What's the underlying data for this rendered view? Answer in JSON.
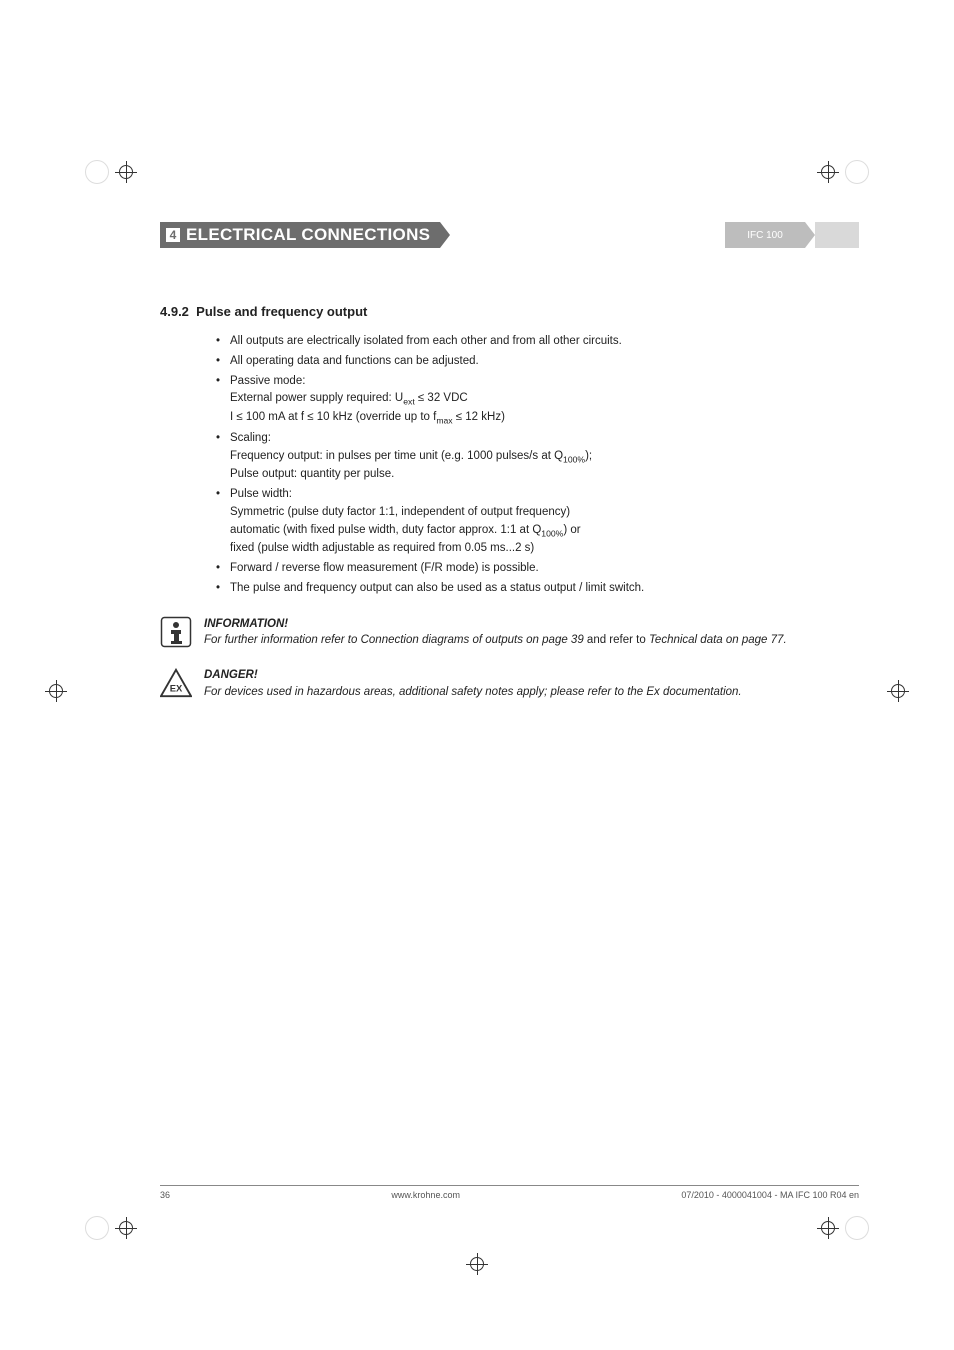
{
  "header": {
    "chapter_num": "4",
    "title": "ELECTRICAL CONNECTIONS",
    "device": "IFC 100",
    "colors": {
      "dark": "#6d6d6d",
      "light": "#bdbdbd",
      "tail": "#d9d9d9"
    }
  },
  "section": {
    "number": "4.9.2",
    "title": "Pulse and frequency output"
  },
  "bullets": [
    {
      "lead": "All outputs are electrically isolated from each other and from all other circuits."
    },
    {
      "lead": "All operating data and functions can be adjusted."
    },
    {
      "lead": "Passive mode:",
      "sub": [
        "External power supply required: U<sub>ext</sub> ≤ 32 VDC",
        "I ≤ 100 mA at f ≤ 10 kHz (override up to f<sub>max</sub> ≤ 12 kHz)"
      ]
    },
    {
      "lead": "Scaling:",
      "sub": [
        "Frequency output: in pulses per time unit (e.g. 1000 pulses/s at Q<sub>100%</sub>);",
        "Pulse output: quantity per pulse."
      ]
    },
    {
      "lead": "Pulse width:",
      "sub": [
        "Symmetric (pulse duty factor 1:1, independent of output frequency)",
        "automatic (with fixed pulse width, duty factor approx. 1:1 at Q<sub>100%</sub>) or",
        "fixed (pulse width adjustable as required from 0.05 ms...2 s)"
      ]
    },
    {
      "lead": "Forward / reverse flow measurement (F/R mode) is possible."
    },
    {
      "lead": "The pulse and frequency output can also be used as a status output / limit switch."
    }
  ],
  "notes": {
    "info": {
      "head": "INFORMATION!",
      "text_pre": "For further information refer to ",
      "text_em": "Connection diagrams of outputs on page 39",
      "text_mid": " and refer to ",
      "text_em2": "Technical data on page 77",
      "text_post": "."
    },
    "danger": {
      "head": "DANGER!",
      "text": "For devices used in hazardous areas, additional safety notes apply; please refer to the Ex documentation."
    }
  },
  "footer": {
    "page": "36",
    "site": "www.krohne.com",
    "docid": "07/2010 - 4000041004 - MA IFC 100 R04 en"
  }
}
